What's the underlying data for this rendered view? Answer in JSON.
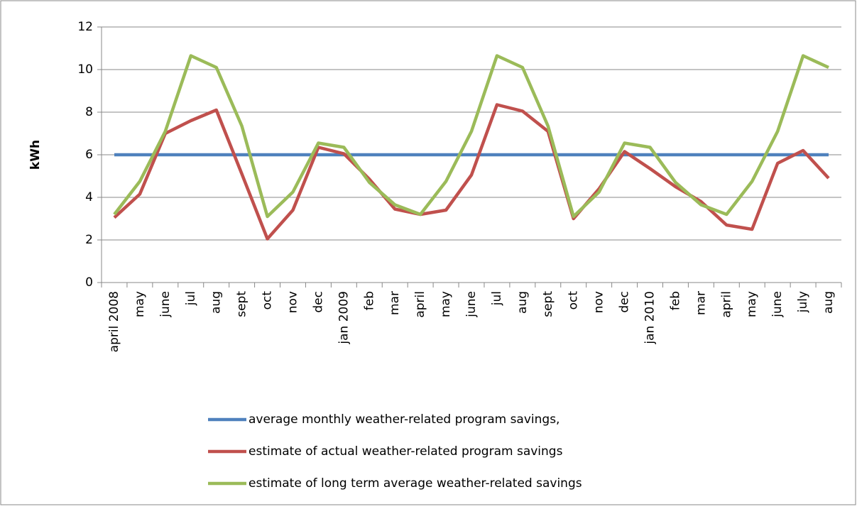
{
  "chart_data": {
    "type": "line",
    "y_label": "kWh",
    "categories": [
      "april 2008",
      "may",
      "june",
      "jul",
      "aug",
      "sept",
      "oct",
      "nov",
      "dec",
      "jan 2009",
      "feb",
      "mar",
      "april",
      "may",
      "june",
      "jul",
      "aug",
      "sept",
      "oct",
      "nov",
      "dec",
      "jan 2010",
      "feb",
      "mar",
      "april",
      "may",
      "june",
      "july",
      "aug"
    ],
    "series": [
      {
        "name": "average monthly weather-related program savings,",
        "color": "#4f81bd",
        "values": [
          6,
          6,
          6,
          6,
          6,
          6,
          6,
          6,
          6,
          6,
          6,
          6,
          6,
          6,
          6,
          6,
          6,
          6,
          6,
          6,
          6,
          6,
          6,
          6,
          6,
          6,
          6,
          6,
          6
        ]
      },
      {
        "name": "estimate of actual weather-related program savings",
        "color": "#c0504d",
        "values": [
          3.05,
          4.15,
          7.0,
          7.6,
          8.1,
          5.1,
          2.05,
          3.4,
          6.35,
          6.05,
          4.85,
          3.45,
          3.2,
          3.4,
          5.05,
          8.35,
          8.05,
          7.1,
          3.0,
          4.4,
          6.15,
          5.35,
          4.5,
          3.8,
          2.7,
          2.5,
          5.6,
          6.2,
          4.9
        ]
      },
      {
        "name": "estimate of long term average weather-related savings",
        "color": "#9bbb59",
        "values": [
          3.2,
          4.75,
          7.1,
          10.65,
          10.1,
          7.35,
          3.1,
          4.25,
          6.55,
          6.35,
          4.7,
          3.65,
          3.2,
          4.75,
          7.1,
          10.65,
          10.1,
          7.35,
          3.1,
          4.25,
          6.55,
          6.35,
          4.7,
          3.65,
          3.2,
          4.75,
          7.1,
          10.65,
          10.1
        ]
      }
    ],
    "ylim": [
      0,
      12
    ],
    "yticks": [
      0,
      2,
      4,
      6,
      8,
      10,
      12
    ],
    "grid": true,
    "legend": "bottom"
  }
}
